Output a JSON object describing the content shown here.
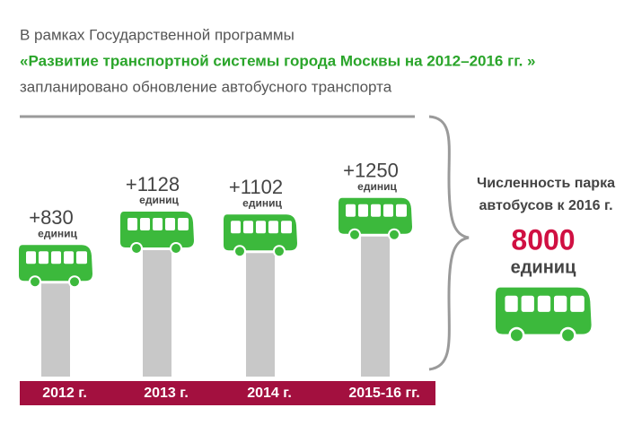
{
  "chart_data": {
    "type": "bar",
    "title_lines": [
      "В рамках Государственной программы",
      "«Развитие транспортной системы города Москвы на 2012–2016 гг. »",
      "запланировано обновление автобусного транспорта"
    ],
    "categories": [
      "2012 г.",
      "2013 г.",
      "2014 г.",
      "2015-16 гг."
    ],
    "values": [
      830,
      1128,
      1102,
      1250
    ],
    "value_labels": [
      "+830",
      "+1128",
      "+1102",
      "+1250"
    ],
    "unit": "единиц",
    "color": "#c8c8c8",
    "icon_color": "#3cb93c",
    "band_color": "#a3103f",
    "total": {
      "label_lines": [
        "Численность парка",
        "автобусов к 2016 г."
      ],
      "value": 8000,
      "unit": "единиц"
    }
  }
}
